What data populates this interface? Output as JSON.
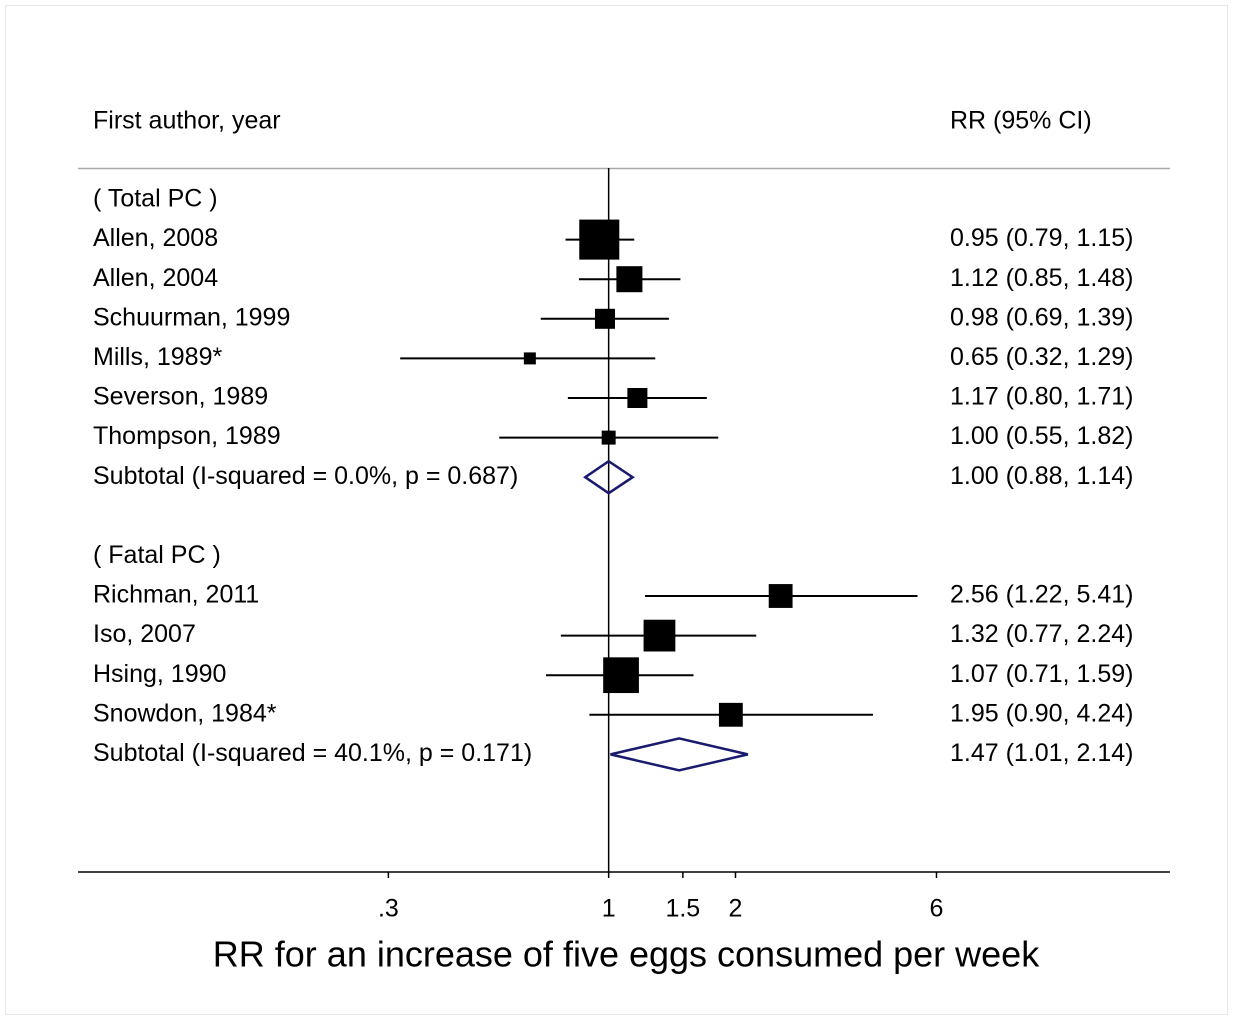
{
  "chart_data": {
    "type": "forest",
    "left_header": "First author, year",
    "right_header": "RR (95% CI)",
    "xlabel": "RR for an increase of five eggs consumed per week",
    "xscale": "log",
    "xlim": [
      0.055,
      21.5
    ],
    "xticks": [
      {
        "value": 0.3,
        "label": ".3"
      },
      1,
      1.5,
      2,
      6
    ],
    "null_line": 1,
    "box_color": "#000000",
    "diamond_color": "#1a1a6e",
    "groups": [
      {
        "label": "( Total PC )",
        "studies": [
          {
            "name": "Allen, 2008",
            "rr": 0.95,
            "lower": 0.79,
            "upper": 1.15,
            "weight": 46.8,
            "label": "0.95 (0.79, 1.15)"
          },
          {
            "name": "Allen, 2004",
            "rr": 1.12,
            "lower": 0.85,
            "upper": 1.48,
            "weight": 19.8,
            "label": "1.12 (0.85, 1.48)"
          },
          {
            "name": "Schuurman, 1999",
            "rr": 0.98,
            "lower": 0.69,
            "upper": 1.39,
            "weight": 11.7,
            "label": "0.98 (0.69, 1.39)"
          },
          {
            "name": "Mills, 1989*",
            "rr": 0.65,
            "lower": 0.32,
            "upper": 1.29,
            "weight": 4.2,
            "label": "0.65 (0.32, 1.29)"
          },
          {
            "name": "Severson, 1989",
            "rr": 1.17,
            "lower": 0.8,
            "upper": 1.71,
            "weight": 11.7,
            "label": "1.17 (0.80, 1.71)"
          },
          {
            "name": "Thompson, 1989",
            "rr": 1.0,
            "lower": 0.55,
            "upper": 1.82,
            "weight": 5.7,
            "label": "1.00 (0.55, 1.82)"
          }
        ],
        "subtotal": {
          "name": "Subtotal  (I-squared = 0.0%, p = 0.687)",
          "rr": 1.0,
          "lower": 0.88,
          "upper": 1.14,
          "label": "1.00 (0.88, 1.14)"
        }
      },
      {
        "label": "( Fatal PC )",
        "studies": [
          {
            "name": "Richman, 2011",
            "rr": 2.56,
            "lower": 1.22,
            "upper": 5.41,
            "weight": 16.6,
            "label": "2.56 (1.22, 5.41)"
          },
          {
            "name": "Iso, 2007",
            "rr": 1.32,
            "lower": 0.77,
            "upper": 2.24,
            "weight": 29.5,
            "label": "1.32 (0.77, 2.24)"
          },
          {
            "name": "Hsing, 1990",
            "rr": 1.07,
            "lower": 0.71,
            "upper": 1.59,
            "weight": 37.3,
            "label": "1.07 (0.71, 1.59)"
          },
          {
            "name": "Snowdon, 1984*",
            "rr": 1.95,
            "lower": 0.9,
            "upper": 4.24,
            "weight": 16.6,
            "label": "1.95 (0.90, 4.24)"
          }
        ],
        "subtotal": {
          "name": "Subtotal  (I-squared = 40.1%, p = 0.171)",
          "rr": 1.47,
          "lower": 1.01,
          "upper": 2.14,
          "label": "1.47 (1.01, 2.14)"
        }
      }
    ]
  }
}
